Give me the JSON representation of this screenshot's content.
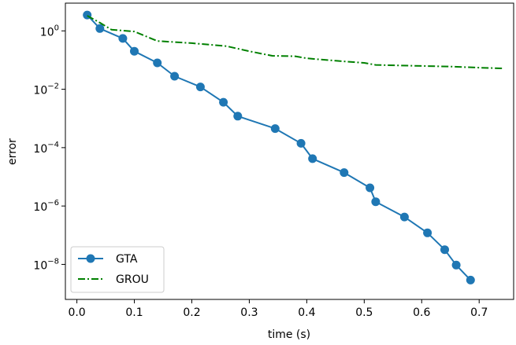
{
  "chart_data": {
    "type": "line",
    "title": "",
    "xlabel": "time (s)",
    "ylabel": "error",
    "xlim": [
      -0.02,
      0.76
    ],
    "ylim_log10": [
      -9.2,
      0.95
    ],
    "yscale": "log",
    "grid": false,
    "legend_position": "lower-left",
    "x_ticks": [
      0.0,
      0.1,
      0.2,
      0.3,
      0.4,
      0.5,
      0.6,
      0.7
    ],
    "x_tick_labels": [
      "0.0",
      "0.1",
      "0.2",
      "0.3",
      "0.4",
      "0.5",
      "0.6",
      "0.7"
    ],
    "y_ticks_log10": [
      0,
      -2,
      -4,
      -6,
      -8
    ],
    "y_tick_labels": [
      {
        "base": "10",
        "exp": "0"
      },
      {
        "base": "10",
        "exp": "−2"
      },
      {
        "base": "10",
        "exp": "−4"
      },
      {
        "base": "10",
        "exp": "−6"
      },
      {
        "base": "10",
        "exp": "−8"
      }
    ],
    "series": [
      {
        "name": "GTA",
        "color": "#1f77b4",
        "style": "solid-marker",
        "x": [
          0.018,
          0.04,
          0.08,
          0.1,
          0.14,
          0.17,
          0.215,
          0.255,
          0.28,
          0.345,
          0.39,
          0.41,
          0.465,
          0.51,
          0.52,
          0.57,
          0.61,
          0.64,
          0.66,
          0.685
        ],
        "y": [
          3.5,
          1.2,
          0.55,
          0.2,
          0.08,
          0.028,
          0.012,
          0.0036,
          0.0012,
          0.00045,
          0.00014,
          4.2e-05,
          1.4e-05,
          4.2e-06,
          1.4e-06,
          4.2e-07,
          1.2e-07,
          3.2e-08,
          9.5e-09,
          2.9e-09
        ]
      },
      {
        "name": "GROU",
        "color": "#008000",
        "style": "dash-dot",
        "x": [
          0.018,
          0.04,
          0.06,
          0.1,
          0.14,
          0.2,
          0.26,
          0.3,
          0.34,
          0.38,
          0.4,
          0.45,
          0.5,
          0.52,
          0.6,
          0.65,
          0.7,
          0.74
        ],
        "y": [
          3.3,
          1.9,
          1.1,
          0.95,
          0.45,
          0.38,
          0.3,
          0.2,
          0.14,
          0.135,
          0.115,
          0.095,
          0.08,
          0.068,
          0.063,
          0.06,
          0.055,
          0.052
        ]
      }
    ]
  }
}
